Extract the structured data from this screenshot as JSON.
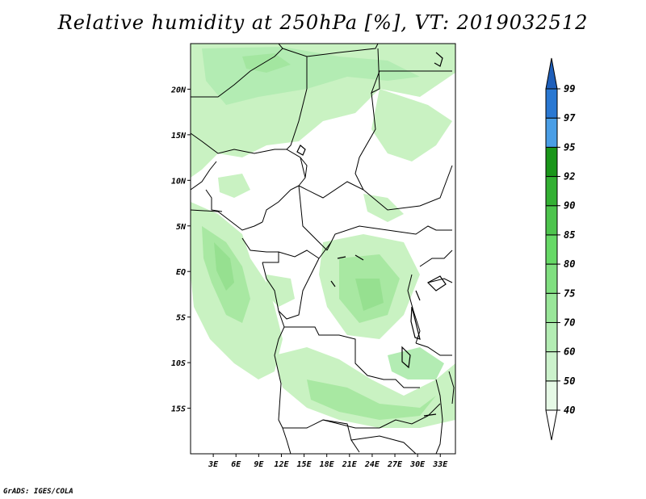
{
  "title": "Relative humidity at 250hPa [%], VT: 2019032512",
  "credit": "GrADS: IGES/COLA",
  "map": {
    "lat_labels": [
      "20N",
      "15N",
      "10N",
      "5N",
      "EQ",
      "5S",
      "10S",
      "15S"
    ],
    "lat_values": [
      20,
      15,
      10,
      5,
      0,
      -5,
      -10,
      -15
    ],
    "lon_labels": [
      "3E",
      "6E",
      "9E",
      "12E",
      "15E",
      "18E",
      "21E",
      "24E",
      "27E",
      "30E",
      "33E"
    ],
    "lon_values": [
      3,
      6,
      9,
      12,
      15,
      18,
      21,
      24,
      27,
      30,
      33
    ],
    "lon_range": [
      0,
      35
    ],
    "lat_range": [
      -20,
      25
    ]
  },
  "colorbar": {
    "levels": [
      "40",
      "50",
      "60",
      "70",
      "75",
      "80",
      "85",
      "90",
      "92",
      "95",
      "97",
      "99"
    ],
    "colors": [
      "#ffffff",
      "#e6f9e6",
      "#ccf2cc",
      "#b3ecb3",
      "#99e699",
      "#80df80",
      "#66d966",
      "#4dc44d",
      "#33b033",
      "#1a961a",
      "#4a9ee6",
      "#2a78d2",
      "#1f5fba"
    ]
  },
  "colors": {
    "light_green": "#c9f2c2",
    "mid_green": "#a8e8a2",
    "border": "#000000"
  }
}
